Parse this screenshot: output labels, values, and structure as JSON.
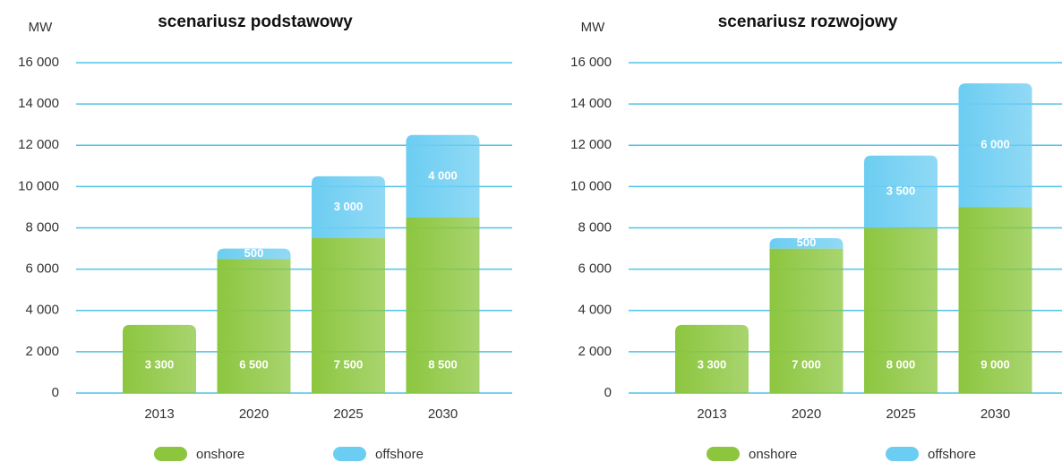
{
  "chart_data": [
    {
      "type": "stacked_bar",
      "title": "scenariusz podstawowy",
      "y_label": "MW",
      "categories": [
        "2013",
        "2020",
        "2025",
        "2030"
      ],
      "series": [
        {
          "name": "onshore",
          "color": "#8cc63f",
          "values": [
            3300,
            6500,
            7500,
            8500
          ],
          "value_labels": [
            "3 300",
            "6 500",
            "7 500",
            "8 500"
          ]
        },
        {
          "name": "offshore",
          "color": "#6ccdf2",
          "values": [
            null,
            500,
            3000,
            4000
          ],
          "value_labels": [
            null,
            "500",
            "3 000",
            "4 000"
          ]
        }
      ],
      "ylim": [
        0,
        16000
      ],
      "yticks": [
        0,
        {
          "value": 2000,
          "label": "2 000"
        },
        {
          "value": 4000,
          "label": "4 000"
        },
        {
          "value": 6000,
          "label": "6 000"
        },
        {
          "value": 8000,
          "label": "8 000"
        },
        {
          "value": 10000,
          "label": "10 000"
        },
        {
          "value": 12000,
          "label": "12 000"
        },
        {
          "value": 14000,
          "label": "14 000"
        },
        {
          "value": 16000,
          "label": "16 000"
        }
      ],
      "grid": true,
      "legend": "bottom"
    },
    {
      "type": "stacked_bar",
      "title": "scenariusz rozwojowy",
      "y_label": "MW",
      "categories": [
        "2013",
        "2020",
        "2025",
        "2030"
      ],
      "series": [
        {
          "name": "onshore",
          "color": "#8cc63f",
          "values": [
            3300,
            7000,
            8000,
            9000
          ],
          "value_labels": [
            "3 300",
            "7 000",
            "8 000",
            "9 000"
          ]
        },
        {
          "name": "offshore",
          "color": "#6ccdf2",
          "values": [
            null,
            500,
            3500,
            6000
          ],
          "value_labels": [
            null,
            "500",
            "3 500",
            "6 000"
          ]
        }
      ],
      "ylim": [
        0,
        16000
      ],
      "yticks": [
        0,
        {
          "value": 2000,
          "label": "2 000"
        },
        {
          "value": 4000,
          "label": "4 000"
        },
        {
          "value": 6000,
          "label": "6 000"
        },
        {
          "value": 8000,
          "label": "8 000"
        },
        {
          "value": 10000,
          "label": "10 000"
        },
        {
          "value": 12000,
          "label": "12 000"
        },
        {
          "value": 14000,
          "label": "14 000"
        },
        {
          "value": 16000,
          "label": "16 000"
        }
      ],
      "grid": true,
      "legend": "bottom"
    }
  ]
}
